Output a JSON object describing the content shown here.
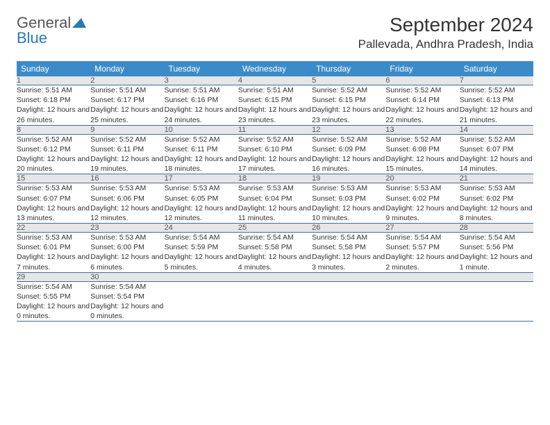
{
  "logo": {
    "text1": "General",
    "text2": "Blue"
  },
  "title": "September 2024",
  "location": "Pallevada, Andhra Pradesh, India",
  "colors": {
    "header_bg": "#3b8bc9",
    "header_text": "#ffffff",
    "daynum_bg": "#e6e6e6",
    "border": "#3b6e9c",
    "logo_blue": "#2a7ab8"
  },
  "typography": {
    "title_fontsize": 28,
    "location_fontsize": 17,
    "header_fontsize": 12,
    "daynum_fontsize": 11,
    "detail_fontsize": 10.5
  },
  "weekdays": [
    "Sunday",
    "Monday",
    "Tuesday",
    "Wednesday",
    "Thursday",
    "Friday",
    "Saturday"
  ],
  "days": [
    {
      "n": "1",
      "sr": "5:51 AM",
      "ss": "6:18 PM",
      "dl": "12 hours and 26 minutes."
    },
    {
      "n": "2",
      "sr": "5:51 AM",
      "ss": "6:17 PM",
      "dl": "12 hours and 25 minutes."
    },
    {
      "n": "3",
      "sr": "5:51 AM",
      "ss": "6:16 PM",
      "dl": "12 hours and 24 minutes."
    },
    {
      "n": "4",
      "sr": "5:51 AM",
      "ss": "6:15 PM",
      "dl": "12 hours and 23 minutes."
    },
    {
      "n": "5",
      "sr": "5:52 AM",
      "ss": "6:15 PM",
      "dl": "12 hours and 23 minutes."
    },
    {
      "n": "6",
      "sr": "5:52 AM",
      "ss": "6:14 PM",
      "dl": "12 hours and 22 minutes."
    },
    {
      "n": "7",
      "sr": "5:52 AM",
      "ss": "6:13 PM",
      "dl": "12 hours and 21 minutes."
    },
    {
      "n": "8",
      "sr": "5:52 AM",
      "ss": "6:12 PM",
      "dl": "12 hours and 20 minutes."
    },
    {
      "n": "9",
      "sr": "5:52 AM",
      "ss": "6:11 PM",
      "dl": "12 hours and 19 minutes."
    },
    {
      "n": "10",
      "sr": "5:52 AM",
      "ss": "6:11 PM",
      "dl": "12 hours and 18 minutes."
    },
    {
      "n": "11",
      "sr": "5:52 AM",
      "ss": "6:10 PM",
      "dl": "12 hours and 17 minutes."
    },
    {
      "n": "12",
      "sr": "5:52 AM",
      "ss": "6:09 PM",
      "dl": "12 hours and 16 minutes."
    },
    {
      "n": "13",
      "sr": "5:52 AM",
      "ss": "6:08 PM",
      "dl": "12 hours and 15 minutes."
    },
    {
      "n": "14",
      "sr": "5:52 AM",
      "ss": "6:07 PM",
      "dl": "12 hours and 14 minutes."
    },
    {
      "n": "15",
      "sr": "5:53 AM",
      "ss": "6:07 PM",
      "dl": "12 hours and 13 minutes."
    },
    {
      "n": "16",
      "sr": "5:53 AM",
      "ss": "6:06 PM",
      "dl": "12 hours and 12 minutes."
    },
    {
      "n": "17",
      "sr": "5:53 AM",
      "ss": "6:05 PM",
      "dl": "12 hours and 12 minutes."
    },
    {
      "n": "18",
      "sr": "5:53 AM",
      "ss": "6:04 PM",
      "dl": "12 hours and 11 minutes."
    },
    {
      "n": "19",
      "sr": "5:53 AM",
      "ss": "6:03 PM",
      "dl": "12 hours and 10 minutes."
    },
    {
      "n": "20",
      "sr": "5:53 AM",
      "ss": "6:02 PM",
      "dl": "12 hours and 9 minutes."
    },
    {
      "n": "21",
      "sr": "5:53 AM",
      "ss": "6:02 PM",
      "dl": "12 hours and 8 minutes."
    },
    {
      "n": "22",
      "sr": "5:53 AM",
      "ss": "6:01 PM",
      "dl": "12 hours and 7 minutes."
    },
    {
      "n": "23",
      "sr": "5:53 AM",
      "ss": "6:00 PM",
      "dl": "12 hours and 6 minutes."
    },
    {
      "n": "24",
      "sr": "5:54 AM",
      "ss": "5:59 PM",
      "dl": "12 hours and 5 minutes."
    },
    {
      "n": "25",
      "sr": "5:54 AM",
      "ss": "5:58 PM",
      "dl": "12 hours and 4 minutes."
    },
    {
      "n": "26",
      "sr": "5:54 AM",
      "ss": "5:58 PM",
      "dl": "12 hours and 3 minutes."
    },
    {
      "n": "27",
      "sr": "5:54 AM",
      "ss": "5:57 PM",
      "dl": "12 hours and 2 minutes."
    },
    {
      "n": "28",
      "sr": "5:54 AM",
      "ss": "5:56 PM",
      "dl": "12 hours and 1 minute."
    },
    {
      "n": "29",
      "sr": "5:54 AM",
      "ss": "5:55 PM",
      "dl": "12 hours and 0 minutes."
    },
    {
      "n": "30",
      "sr": "5:54 AM",
      "ss": "5:54 PM",
      "dl": "12 hours and 0 minutes."
    }
  ],
  "labels": {
    "sunrise": "Sunrise:",
    "sunset": "Sunset:",
    "daylight": "Daylight:"
  }
}
